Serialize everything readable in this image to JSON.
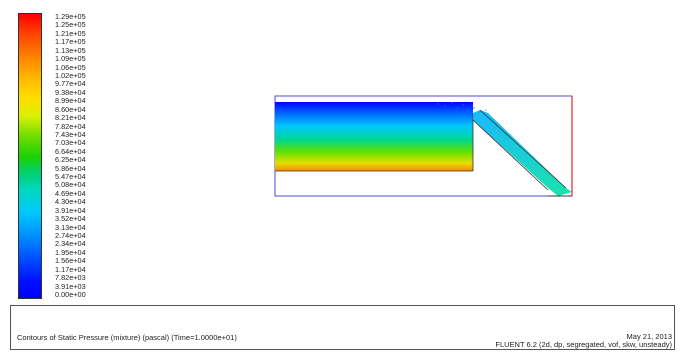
{
  "legend": {
    "labels": [
      "1.29e+05",
      "1.25e+05",
      "1.21e+05",
      "1.17e+05",
      "1.13e+05",
      "1.09e+05",
      "1.06e+05",
      "1.02e+05",
      "9.77e+04",
      "9.38e+04",
      "8.99e+04",
      "8.60e+04",
      "8.21e+04",
      "7.82e+04",
      "7.43e+04",
      "7.03e+04",
      "6.64e+04",
      "6.25e+04",
      "5.86e+04",
      "5.47e+04",
      "5.08e+04",
      "4.69e+04",
      "4.30e+04",
      "3.91e+04",
      "3.52e+04",
      "3.13e+04",
      "2.74e+04",
      "2.34e+04",
      "1.95e+04",
      "1.56e+04",
      "1.17e+04",
      "7.82e+03",
      "3.91e+03",
      "0.00e+00"
    ],
    "max_color": "#ff0000",
    "min_color": "#0000ff"
  },
  "footer": {
    "caption": "Contours of Static Pressure (mixture)  (pascal)  (Time=1.0000e+01)",
    "date": "May 21, 2013",
    "solver": "FLUENT 6.2 (2d, dp, segregated, vof, skw, unsteady)"
  }
}
